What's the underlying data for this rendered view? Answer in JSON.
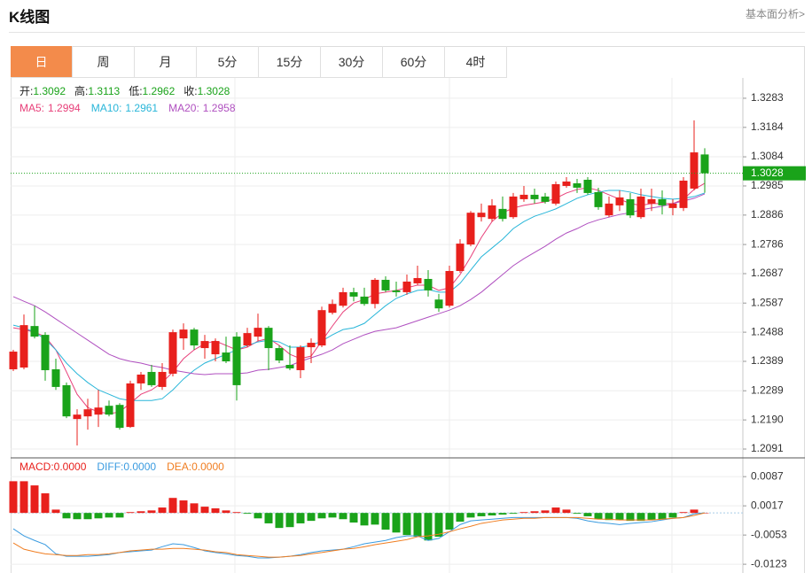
{
  "header": {
    "title": "K线图",
    "link": "基本面分析>"
  },
  "tabs": [
    "日",
    "周",
    "月",
    "5分",
    "15分",
    "30分",
    "60分",
    "4时"
  ],
  "active_tab": 0,
  "chart_data": [
    {
      "type": "candlestick",
      "info_labels": [
        "开:",
        "高:",
        "低:",
        "收:"
      ],
      "up_color": "#e8201c",
      "down_color": "#1aa31a",
      "open": [
        1.2362,
        1.2368,
        1.2509,
        1.2479,
        1.2362,
        1.2308,
        1.2193,
        1.2202,
        1.2208,
        1.2238,
        1.2241,
        1.2166,
        1.2314,
        1.2353,
        1.2302,
        1.2347,
        1.2467,
        1.2497,
        1.2434,
        1.2413,
        1.2419,
        1.2473,
        1.2443,
        1.2473,
        1.2503,
        1.2434,
        1.2377,
        1.2359,
        1.2437,
        1.2443,
        1.2554,
        1.2578,
        1.2624,
        1.2609,
        1.2584,
        1.2666,
        1.263,
        1.2624,
        1.2654,
        1.2669,
        1.2599,
        1.2578,
        1.2696,
        1.2786,
        1.2879,
        1.2873,
        1.2907,
        1.2879,
        1.294,
        1.2955,
        1.2949,
        1.2925,
        1.2985,
        1.2994,
        1.3006,
        1.2964,
        1.2885,
        1.2919,
        1.294,
        1.2879,
        1.2925,
        1.294,
        1.291,
        1.291,
        1.2976,
        1.3092
      ],
      "high": [
        1.2428,
        1.2548,
        1.2578,
        1.2488,
        1.2398,
        1.2317,
        1.2226,
        1.2262,
        1.2292,
        1.2256,
        1.2247,
        1.2323,
        1.2353,
        1.2377,
        1.2383,
        1.2497,
        1.2518,
        1.2503,
        1.2479,
        1.2467,
        1.2473,
        1.2488,
        1.2503,
        1.2551,
        1.2509,
        1.2443,
        1.2443,
        1.2443,
        1.2467,
        1.2575,
        1.2599,
        1.2639,
        1.2639,
        1.2639,
        1.2672,
        1.2678,
        1.266,
        1.2684,
        1.2714,
        1.2699,
        1.2618,
        1.2714,
        1.2804,
        1.29,
        1.2925,
        1.294,
        1.2949,
        1.2961,
        1.2985,
        1.2976,
        1.2961,
        1.3,
        1.3015,
        1.3009,
        1.3015,
        1.2979,
        1.2949,
        1.297,
        1.2961,
        1.2976,
        1.2976,
        1.297,
        1.294,
        1.3015,
        1.3208,
        1.3113
      ],
      "low": [
        1.2356,
        1.2362,
        1.2467,
        1.2323,
        1.2292,
        1.2196,
        1.2103,
        1.2157,
        1.2166,
        1.2202,
        1.2157,
        1.2163,
        1.2292,
        1.2302,
        1.2292,
        1.2338,
        1.2428,
        1.2428,
        1.2398,
        1.2389,
        1.2383,
        1.2256,
        1.2437,
        1.2458,
        1.2359,
        1.2383,
        1.2359,
        1.2332,
        1.2383,
        1.2437,
        1.2548,
        1.2572,
        1.2593,
        1.2578,
        1.2569,
        1.2624,
        1.2609,
        1.2615,
        1.2648,
        1.2609,
        1.2557,
        1.2572,
        1.269,
        1.278,
        1.2864,
        1.2864,
        1.2864,
        1.2873,
        1.2931,
        1.2925,
        1.2925,
        1.2919,
        1.2979,
        1.2961,
        1.2955,
        1.2904,
        1.2879,
        1.29,
        1.2876,
        1.2873,
        1.29,
        1.2888,
        1.2885,
        1.29,
        1.297,
        1.2962
      ],
      "close": [
        1.2422,
        1.2512,
        1.2473,
        1.2359,
        1.2302,
        1.2202,
        1.2208,
        1.2226,
        1.2232,
        1.2208,
        1.2163,
        1.2314,
        1.2344,
        1.2308,
        1.2353,
        1.2488,
        1.2497,
        1.2443,
        1.2458,
        1.2458,
        1.2389,
        1.2308,
        1.2485,
        1.2503,
        1.2434,
        1.2392,
        1.2365,
        1.2437,
        1.2452,
        1.2563,
        1.2584,
        1.2624,
        1.2609,
        1.2584,
        1.2666,
        1.263,
        1.2624,
        1.266,
        1.2672,
        1.263,
        1.2569,
        1.2696,
        1.2789,
        1.2894,
        1.2894,
        1.2919,
        1.2873,
        1.2949,
        1.2955,
        1.294,
        1.2931,
        1.2991,
        1.3,
        1.2979,
        1.2961,
        1.2913,
        1.2925,
        1.2946,
        1.2885,
        1.2949,
        1.294,
        1.2919,
        1.2925,
        1.3003,
        1.3099,
        1.3028
      ],
      "series": [
        {
          "name": "MA5:",
          "color": "#e8407a",
          "values": [
            1.2503,
            1.2497,
            1.2488,
            1.2473,
            1.2428,
            1.2353,
            1.2277,
            1.2232,
            1.2217,
            1.2211,
            1.2217,
            1.2247,
            1.2277,
            1.2292,
            1.2317,
            1.2353,
            1.2398,
            1.2428,
            1.2449,
            1.2458,
            1.2443,
            1.2428,
            1.2437,
            1.2458,
            1.2467,
            1.2443,
            1.2413,
            1.2398,
            1.2407,
            1.2458,
            1.2509,
            1.2557,
            1.2587,
            1.2599,
            1.2618,
            1.2624,
            1.263,
            1.2639,
            1.2648,
            1.2648,
            1.263,
            1.2639,
            1.2684,
            1.2744,
            1.281,
            1.2864,
            1.2894,
            1.291,
            1.2919,
            1.2925,
            1.2931,
            1.2943,
            1.2961,
            1.2973,
            1.2979,
            1.297,
            1.2955,
            1.294,
            1.2925,
            1.2919,
            1.2925,
            1.2925,
            1.2925,
            1.294,
            1.2973,
            1.2994
          ]
        },
        {
          "name": "MA10:",
          "color": "#29b6d9",
          "values": [
            1.2512,
            1.2503,
            1.2488,
            1.2464,
            1.2428,
            1.2383,
            1.2347,
            1.2317,
            1.2292,
            1.2277,
            1.2262,
            1.2256,
            1.2256,
            1.2256,
            1.2262,
            1.2292,
            1.2329,
            1.2359,
            1.2383,
            1.2398,
            1.2413,
            1.2428,
            1.2443,
            1.2455,
            1.2461,
            1.2455,
            1.2437,
            1.2437,
            1.2443,
            1.2458,
            1.2479,
            1.2497,
            1.2503,
            1.2518,
            1.2548,
            1.2578,
            1.2603,
            1.2618,
            1.263,
            1.2633,
            1.2624,
            1.2624,
            1.2654,
            1.2699,
            1.2744,
            1.2774,
            1.2804,
            1.284,
            1.2864,
            1.2882,
            1.2894,
            1.2907,
            1.2925,
            1.2943,
            1.2955,
            1.2964,
            1.297,
            1.297,
            1.2964,
            1.2955,
            1.2949,
            1.2943,
            1.294,
            1.2943,
            1.2949,
            1.2961
          ]
        },
        {
          "name": "MA20:",
          "color": "#b050c0",
          "values": [
            1.2609,
            1.2593,
            1.2578,
            1.2557,
            1.2533,
            1.2509,
            1.2485,
            1.2461,
            1.2437,
            1.2413,
            1.2398,
            1.2389,
            1.2383,
            1.2374,
            1.2368,
            1.2359,
            1.2353,
            1.2347,
            1.2344,
            1.2347,
            1.2347,
            1.2347,
            1.235,
            1.2359,
            1.2362,
            1.2368,
            1.2374,
            1.2389,
            1.2401,
            1.2413,
            1.2428,
            1.2449,
            1.2464,
            1.2479,
            1.2491,
            1.2497,
            1.2503,
            1.2515,
            1.2527,
            1.2539,
            1.2551,
            1.2563,
            1.2578,
            1.2599,
            1.2624,
            1.2654,
            1.2684,
            1.2714,
            1.2738,
            1.2759,
            1.278,
            1.2804,
            1.2825,
            1.284,
            1.2858,
            1.287,
            1.2879,
            1.2888,
            1.2894,
            1.2904,
            1.291,
            1.2916,
            1.2925,
            1.2934,
            1.2943,
            1.2958
          ]
        }
      ],
      "ylim": [
        1.2061,
        1.3352
      ],
      "yticks": [
        1.3283,
        1.3184,
        1.3084,
        1.2985,
        1.2886,
        1.2786,
        1.2687,
        1.2587,
        1.2488,
        1.2389,
        1.2289,
        {
          "value": 1.219,
          "label": "1.2190"
        },
        1.2091
      ],
      "grid": true
    },
    {
      "type": "macd",
      "series": [
        {
          "name": "MACD:",
          "value_label": "0.0000",
          "color": "#e8201c",
          "down_color": "#1aa31a",
          "values": [
            0.0076,
            0.0076,
            0.0066,
            0.0047,
            0.0008,
            -0.0013,
            -0.0015,
            -0.0015,
            -0.0013,
            -0.0011,
            -0.0011,
            0.0002,
            0.0004,
            0.0006,
            0.0013,
            0.0036,
            0.003,
            0.0023,
            0.0015,
            0.0011,
            0.0006,
            0.0002,
            -0.0002,
            -0.0013,
            -0.0025,
            -0.0036,
            -0.0034,
            -0.0025,
            -0.0019,
            -0.0013,
            -0.0011,
            -0.0015,
            -0.0023,
            -0.003,
            -0.0028,
            -0.004,
            -0.0047,
            -0.0053,
            -0.0057,
            -0.0066,
            -0.0057,
            -0.004,
            -0.0021,
            -0.0011,
            -0.0008,
            -0.0006,
            -0.0004,
            -0.0002,
            0.0002,
            0.0004,
            0.0006,
            0.0013,
            0.0008,
            -0.0002,
            -0.0008,
            -0.0015,
            -0.0017,
            -0.0017,
            -0.0019,
            -0.0019,
            -0.0017,
            -0.0015,
            -0.0011,
            0.0002,
            0.0008,
            0
          ]
        },
        {
          "name": "DIFF:",
          "value_label": "0.0000",
          "color": "#3a9be0",
          "values": [
            -0.0038,
            -0.0055,
            -0.0066,
            -0.0076,
            -0.0098,
            -0.0104,
            -0.0104,
            -0.0104,
            -0.0102,
            -0.01,
            -0.0095,
            -0.0093,
            -0.0091,
            -0.0089,
            -0.0081,
            -0.0074,
            -0.0076,
            -0.0083,
            -0.0091,
            -0.0095,
            -0.0098,
            -0.0102,
            -0.0104,
            -0.0108,
            -0.0108,
            -0.0106,
            -0.0104,
            -0.01,
            -0.0095,
            -0.0091,
            -0.0089,
            -0.0087,
            -0.0081,
            -0.0074,
            -0.007,
            -0.0066,
            -0.0059,
            -0.0055,
            -0.0055,
            -0.0066,
            -0.0061,
            -0.0045,
            -0.0028,
            -0.0019,
            -0.0017,
            -0.0015,
            -0.0013,
            -0.0011,
            -0.0011,
            -0.0011,
            -0.0011,
            -0.0011,
            -0.0011,
            -0.0013,
            -0.0019,
            -0.0023,
            -0.0025,
            -0.0028,
            -0.0025,
            -0.0023,
            -0.0021,
            -0.0017,
            -0.0013,
            -0.0011,
            -0.0002,
            0
          ]
        },
        {
          "name": "DEA:",
          "value_label": "0.0000",
          "color": "#f07d20",
          "values": [
            -0.0072,
            -0.0087,
            -0.0093,
            -0.0098,
            -0.01,
            -0.0102,
            -0.0102,
            -0.01,
            -0.01,
            -0.0098,
            -0.0095,
            -0.0091,
            -0.0089,
            -0.0087,
            -0.0087,
            -0.0085,
            -0.0085,
            -0.0087,
            -0.0089,
            -0.0093,
            -0.0095,
            -0.01,
            -0.0102,
            -0.0104,
            -0.0106,
            -0.0106,
            -0.0104,
            -0.0102,
            -0.0098,
            -0.0095,
            -0.0091,
            -0.0087,
            -0.0085,
            -0.0081,
            -0.0076,
            -0.0072,
            -0.0068,
            -0.0064,
            -0.0057,
            -0.0055,
            -0.0051,
            -0.0045,
            -0.0038,
            -0.0032,
            -0.0025,
            -0.0021,
            -0.0017,
            -0.0015,
            -0.0013,
            -0.0013,
            -0.0011,
            -0.0011,
            -0.0011,
            -0.0011,
            -0.0013,
            -0.0015,
            -0.0015,
            -0.0017,
            -0.0017,
            -0.0017,
            -0.0017,
            -0.0015,
            -0.0013,
            -0.0011,
            -0.0006,
            0
          ]
        }
      ],
      "ylim": [
        -0.0144,
        0.0132
      ],
      "yticks": [
        0.0087,
        0.0017,
        -0.0053,
        -0.0123
      ],
      "grid": true
    }
  ]
}
